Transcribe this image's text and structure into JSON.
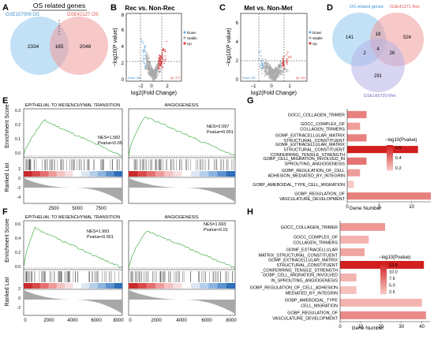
{
  "panel_letters": {
    "A": "A",
    "B": "B",
    "C": "C",
    "D": "D",
    "E": "E",
    "F": "F",
    "G": "G",
    "H": "H"
  },
  "venn_a": {
    "title": "OS related genes",
    "left_label": "GSE157009 OS",
    "right_label": "GSE42127 OS",
    "left_only": "2334",
    "overlap": "165",
    "right_only": "2048",
    "left_color": "#8fc8ef",
    "right_color": "#f09a9a"
  },
  "venn_d": {
    "label_a": "OS related genes",
    "label_b": "GSE41271 Rec",
    "label_c": "GSE166720 Met",
    "regions": {
      "a_only": "141",
      "ab": "18",
      "b_only": "524",
      "ac": "2",
      "abc": "4",
      "bc": "26",
      "c_only": "291"
    },
    "color_a": "#8fc8ef",
    "color_b": "#f09a9a",
    "color_c": "#b7b3e6"
  },
  "chart_data": [
    {
      "panel": "B",
      "type": "scatter",
      "title": "Rec vs. Non-Rec",
      "xlabel": "log2(Fold Change)",
      "ylabel": "−log10(P value)",
      "x_ticks": [
        "−2",
        "0",
        "2"
      ],
      "y_ticks": [
        "0",
        "2",
        "4",
        "6",
        "8"
      ],
      "xlim": [
        -3,
        3
      ],
      "ylim": [
        0,
        8
      ],
      "legend": [
        "Down",
        "Stable",
        "Up"
      ],
      "colors": {
        "down": "#6aaee3",
        "stable": "#a9a9a9",
        "up": "#e03a3a"
      },
      "down_count": "Down: 496",
      "up_count": "Up: 372"
    },
    {
      "panel": "C",
      "type": "scatter",
      "title": "Met vs. Non-Met",
      "xlabel": "log2(Fold Change)",
      "ylabel": "−log10(P value)",
      "x_ticks": [
        "−1",
        "0",
        "1"
      ],
      "y_ticks": [
        "0",
        "2",
        "4",
        "6"
      ],
      "xlim": [
        -1.5,
        1.5
      ],
      "ylim": [
        0,
        7
      ],
      "legend": [
        "Down",
        "Stable",
        "Up"
      ],
      "colors": {
        "down": "#6aaee3",
        "stable": "#a9a9a9",
        "up": "#e03a3a"
      },
      "down_count": "Down: 402",
      "up_count": "Up: 323"
    },
    {
      "panel": "E",
      "type": "line",
      "gsea": [
        {
          "title": "EPITHELIAL TO MESENCHYMAL TRANSITION",
          "nes": "NES=1.582",
          "pvalue": "Pvalue<0.05",
          "x_ticks": [
            "2500",
            "5000",
            "7500"
          ],
          "xmax": 9000
        },
        {
          "title": "ANGIOGENESIS",
          "nes": "NES=2.097",
          "pvalue": "Pvalue=0.001",
          "x_ticks": [
            "2500",
            "5000",
            "7500"
          ],
          "xmax": 9000
        }
      ],
      "ylabel_top": "Enrichment Score",
      "ylabel_bottom": "Ranked List",
      "y_ticks_es": [
        "0.0",
        "0.1",
        "0.2",
        "0.3"
      ],
      "y_ticks_rank": [
        "2",
        "0",
        "-2",
        "-4"
      ]
    },
    {
      "panel": "F",
      "type": "line",
      "gsea": [
        {
          "title": "EPITHELIAL TO MESENCHYMAL TRANSITION",
          "nes": "NES=1.993",
          "pvalue": "Pvalue<0.001",
          "x_ticks": [
            "0",
            "2000",
            "4000",
            "6000",
            "8000"
          ],
          "xmax": 8000
        },
        {
          "title": "ANGIOGENESIS",
          "nes": "NES=1.693",
          "pvalue": "Pvalue<0.01",
          "x_ticks": [
            "0",
            "2000",
            "4000",
            "6000",
            "8000"
          ],
          "xmax": 8000
        }
      ],
      "ylabel_top": "Enrichment Score",
      "ylabel_bottom": "Ranked List",
      "y_ticks_es": [
        "0.0",
        "0.2",
        "0.4",
        "0.6"
      ],
      "y_ticks_rank": [
        "2",
        "0",
        "-2"
      ]
    },
    {
      "panel": "G",
      "type": "bar",
      "categories": [
        [
          "GOCC_COLLAGEN_TRIMER"
        ],
        [
          "GOCC_COMPLEX_OF",
          "COLLAGEN_TRIMERS"
        ],
        [
          "GOMF_EXTRACELLULAR_MATRIX",
          "STRUCTURAL_CONSTITUENT"
        ],
        [
          "GOMF_EXTRACELLULAR_MATRIX",
          "STRUCTURAL_CONSTITUENT",
          "CONFERRING_TENSILE_STRENGTH"
        ],
        [
          "GOBP_CELL_MIGRATION_INVOLVED_IN",
          "SPROUTING_ANGIOGENESIS"
        ],
        [
          "GOBP_REGULATION_OF_CELL",
          "ADHESION_MEDIATED_BY_INTEGRIN"
        ],
        [
          "GOBP_AMEBOIDAL_TYPE_CELL_MIGRATION"
        ],
        [
          "GOBP_REGULATION_OF",
          "VASCULATURE_DEVELOPMENT"
        ]
      ],
      "values": [
        3,
        2,
        3,
        11,
        3,
        2,
        1,
        13
      ],
      "color_values": [
        0.3,
        0.2,
        0.3,
        0.65,
        0.35,
        0.2,
        0.05,
        0.3
      ],
      "xlabel": "Gene Number",
      "x_ticks": [
        0,
        5,
        10
      ],
      "xlim": [
        0,
        13
      ],
      "legend_title": "−log10(Pvalue)",
      "legend_ticks": [
        "0.6",
        "0.4",
        "0.2"
      ],
      "legend_range": [
        0.05,
        0.65
      ]
    },
    {
      "panel": "H",
      "type": "bar",
      "categories": [
        [
          "GOCC_COLLAGEN_TRIMER"
        ],
        [
          "GOCC_COMPLEX_OF",
          "COLLAGEN_TRIMERS"
        ],
        [
          "GOMF_EXTRACELLULAR",
          "MATRIX_STRUCTURAL_CONSTITUENT"
        ],
        [
          "GOMF_EXTRACELLULAR_MATRIX",
          "STRUCTURAL_CONSTITUENT",
          "_CONFERRING_TENSILE_STRENGTH"
        ],
        [
          "GOBP_CELL_MIGRATION_INVOLVED",
          "IN_SPROUTING_ANGIOGENESIS"
        ],
        [
          "GOBP_REGULATION_OF_CELL_ADHESION",
          "MEDIATED_BY_INTEGRIN"
        ],
        [
          "GOBP_AMEBOIDAL_TYPE",
          "CELL_MIGRATION"
        ],
        [
          "GOBP_REGULATION_OF",
          "VASCULATURE_DEVELOPMENT"
        ]
      ],
      "values": [
        22,
        14,
        12,
        41,
        8,
        8,
        40,
        42
      ],
      "color_values": [
        5,
        3,
        4,
        14,
        3,
        2,
        3,
        6
      ],
      "xlabel": "Gene Number",
      "x_ticks": [
        0,
        10,
        20,
        30,
        40
      ],
      "xlim": [
        0,
        44
      ],
      "legend_title": "−log10(Pvalue)",
      "legend_ticks": [
        "12.5",
        "10.0",
        "7.5",
        "5.0",
        "2.5"
      ],
      "legend_range": [
        1.5,
        14
      ]
    }
  ]
}
